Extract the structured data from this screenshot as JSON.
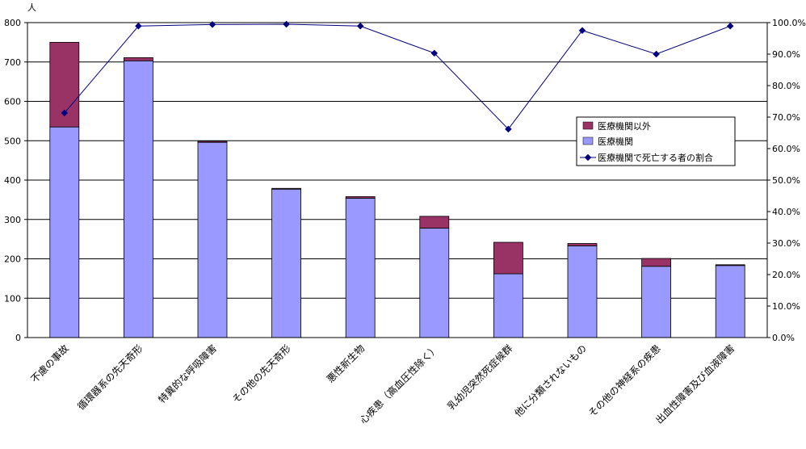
{
  "chart_data": {
    "type": "bar",
    "stacked": true,
    "categories": [
      "不慮の事故",
      "循環器系の先天奇形",
      "特異的な呼吸障害",
      "その他の先天奇形",
      "悪性新生物",
      "心疾患（高血圧性除く）",
      "乳幼児突然死症候群",
      "他に分類されないもの",
      "その他の神経系の疾患",
      "出血性障害及び血液障害"
    ],
    "series": [
      {
        "name": "医療機関以外",
        "values": [
          215,
          8,
          3,
          2,
          4,
          30,
          80,
          6,
          20,
          2
        ],
        "color": "#993366",
        "axis": "left"
      },
      {
        "name": "医療機関",
        "values": [
          535,
          703,
          496,
          377,
          354,
          278,
          162,
          233,
          181,
          183
        ],
        "color": "#9999ff",
        "axis": "left"
      },
      {
        "name": "医療機関で死亡する者の割合",
        "type": "line",
        "values": [
          71.3,
          98.9,
          99.4,
          99.5,
          98.9,
          90.3,
          66.2,
          97.5,
          90.0,
          98.9
        ],
        "color": "#000080",
        "axis": "right"
      }
    ],
    "ylabel": "人",
    "ylim": [
      0,
      800
    ],
    "yticks": [
      "0",
      "100",
      "200",
      "300",
      "400",
      "500",
      "600",
      "700",
      "800"
    ],
    "y2lim": [
      0,
      100
    ],
    "y2ticks": [
      "0.0%",
      "10.0%",
      "20.0%",
      "30.0%",
      "40.0%",
      "50.0%",
      "60.0%",
      "70.0%",
      "80.0%",
      "90.0%",
      "100.0%"
    ],
    "grid": true,
    "legend_position": "right"
  }
}
